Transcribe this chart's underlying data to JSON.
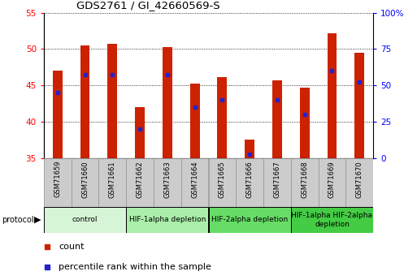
{
  "title": "GDS2761 / GI_42660569-S",
  "samples": [
    "GSM71659",
    "GSM71660",
    "GSM71661",
    "GSM71662",
    "GSM71663",
    "GSM71664",
    "GSM71665",
    "GSM71666",
    "GSM71667",
    "GSM71668",
    "GSM71669",
    "GSM71670"
  ],
  "counts": [
    47.0,
    50.5,
    50.7,
    42.0,
    50.3,
    45.3,
    46.1,
    37.5,
    45.7,
    44.7,
    52.2,
    49.5
  ],
  "percentiles": [
    44.0,
    46.5,
    46.5,
    39.0,
    46.5,
    42.0,
    43.0,
    35.5,
    43.0,
    41.0,
    47.0,
    45.5
  ],
  "ylim_left": [
    35,
    55
  ],
  "ylim_right": [
    0,
    100
  ],
  "yticks_left": [
    35,
    40,
    45,
    50,
    55
  ],
  "ytick_labels_left": [
    "35",
    "40",
    "45",
    "50",
    "55"
  ],
  "yticks_right": [
    0,
    25,
    50,
    75,
    100
  ],
  "ytick_labels_right": [
    "0",
    "25",
    "50",
    "75",
    "100%"
  ],
  "bar_color": "#cc2200",
  "dot_color": "#2222cc",
  "bar_width": 0.35,
  "protocol_groups": [
    {
      "label": "control",
      "start": 0,
      "end": 2,
      "color": "#d6f5d6"
    },
    {
      "label": "HIF-1alpha depletion",
      "start": 3,
      "end": 5,
      "color": "#aaeeaa"
    },
    {
      "label": "HIF-2alpha depletion",
      "start": 6,
      "end": 8,
      "color": "#66dd66"
    },
    {
      "label": "HIF-1alpha HIF-2alpha\ndepletion",
      "start": 9,
      "end": 11,
      "color": "#44cc44"
    }
  ],
  "legend_count_color": "#cc2200",
  "legend_percentile_color": "#2222cc",
  "sample_box_color": "#cccccc",
  "sample_box_edge": "#999999",
  "white": "#ffffff"
}
